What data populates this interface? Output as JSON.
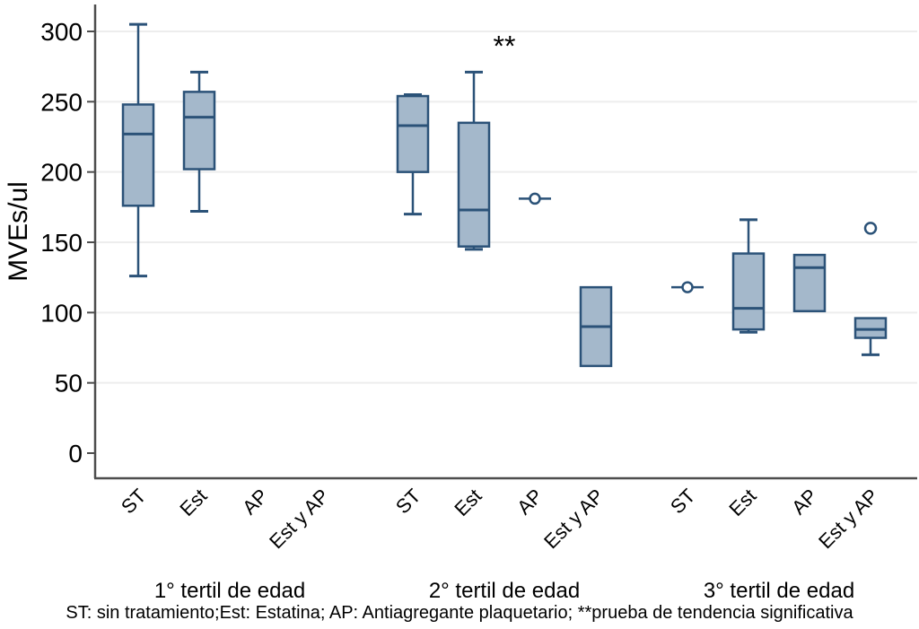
{
  "colors": {
    "box_fill": "#a4b8cb",
    "box_stroke": "#2b5278",
    "grid": "#ededed",
    "axis": "#4d4d4d",
    "text": "#000000"
  },
  "chart_data": {
    "type": "boxplot",
    "ylabel": "MVEs/ul",
    "ylim": [
      0,
      300
    ],
    "yticks": [
      0,
      50,
      100,
      150,
      200,
      250,
      300
    ],
    "grid": "horizontal-light",
    "legend": "none",
    "annotation": {
      "text": "**",
      "between": "2nd tertile Est and AP",
      "value": 294
    },
    "groups": [
      {
        "label": "1° tertil de edad",
        "items": [
          {
            "cat": "ST",
            "box": {
              "whislo": 126,
              "q1": 176,
              "med": 227,
              "q3": 248,
              "whishi": 305
            }
          },
          {
            "cat": "Est",
            "box": {
              "whislo": 172,
              "q1": 202,
              "med": 239,
              "q3": 257,
              "whishi": 271
            }
          },
          {
            "cat": "AP",
            "box": null
          },
          {
            "cat": "Est y AP",
            "box": null
          }
        ]
      },
      {
        "label": "2° tertil de edad",
        "items": [
          {
            "cat": "ST",
            "box": {
              "whislo": 170,
              "q1": 200,
              "med": 233,
              "q3": 254,
              "whishi": 255
            }
          },
          {
            "cat": "Est",
            "box": {
              "whislo": 145,
              "q1": 147,
              "med": 173,
              "q3": 235,
              "whishi": 271
            }
          },
          {
            "cat": "AP",
            "point": 181
          },
          {
            "cat": "Est y AP",
            "box": {
              "q1": 62,
              "med": 90,
              "q3": 118
            }
          }
        ]
      },
      {
        "label": "3° tertil de edad",
        "items": [
          {
            "cat": "ST",
            "point": 118
          },
          {
            "cat": "Est",
            "box": {
              "whislo": 86,
              "q1": 88,
              "med": 103,
              "q3": 142,
              "whishi": 166
            }
          },
          {
            "cat": "AP",
            "box": {
              "q1": 101,
              "med": 132,
              "q3": 141
            }
          },
          {
            "cat": "Est y AP",
            "box": {
              "whislo": 70,
              "q1": 82,
              "med": 88,
              "q3": 96
            },
            "fliers": [
              160
            ]
          }
        ]
      }
    ],
    "footnote": "ST: sin tratamiento;Est: Estatina; AP: Antiagregante plaquetario; **prueba de tendencia significativa"
  }
}
